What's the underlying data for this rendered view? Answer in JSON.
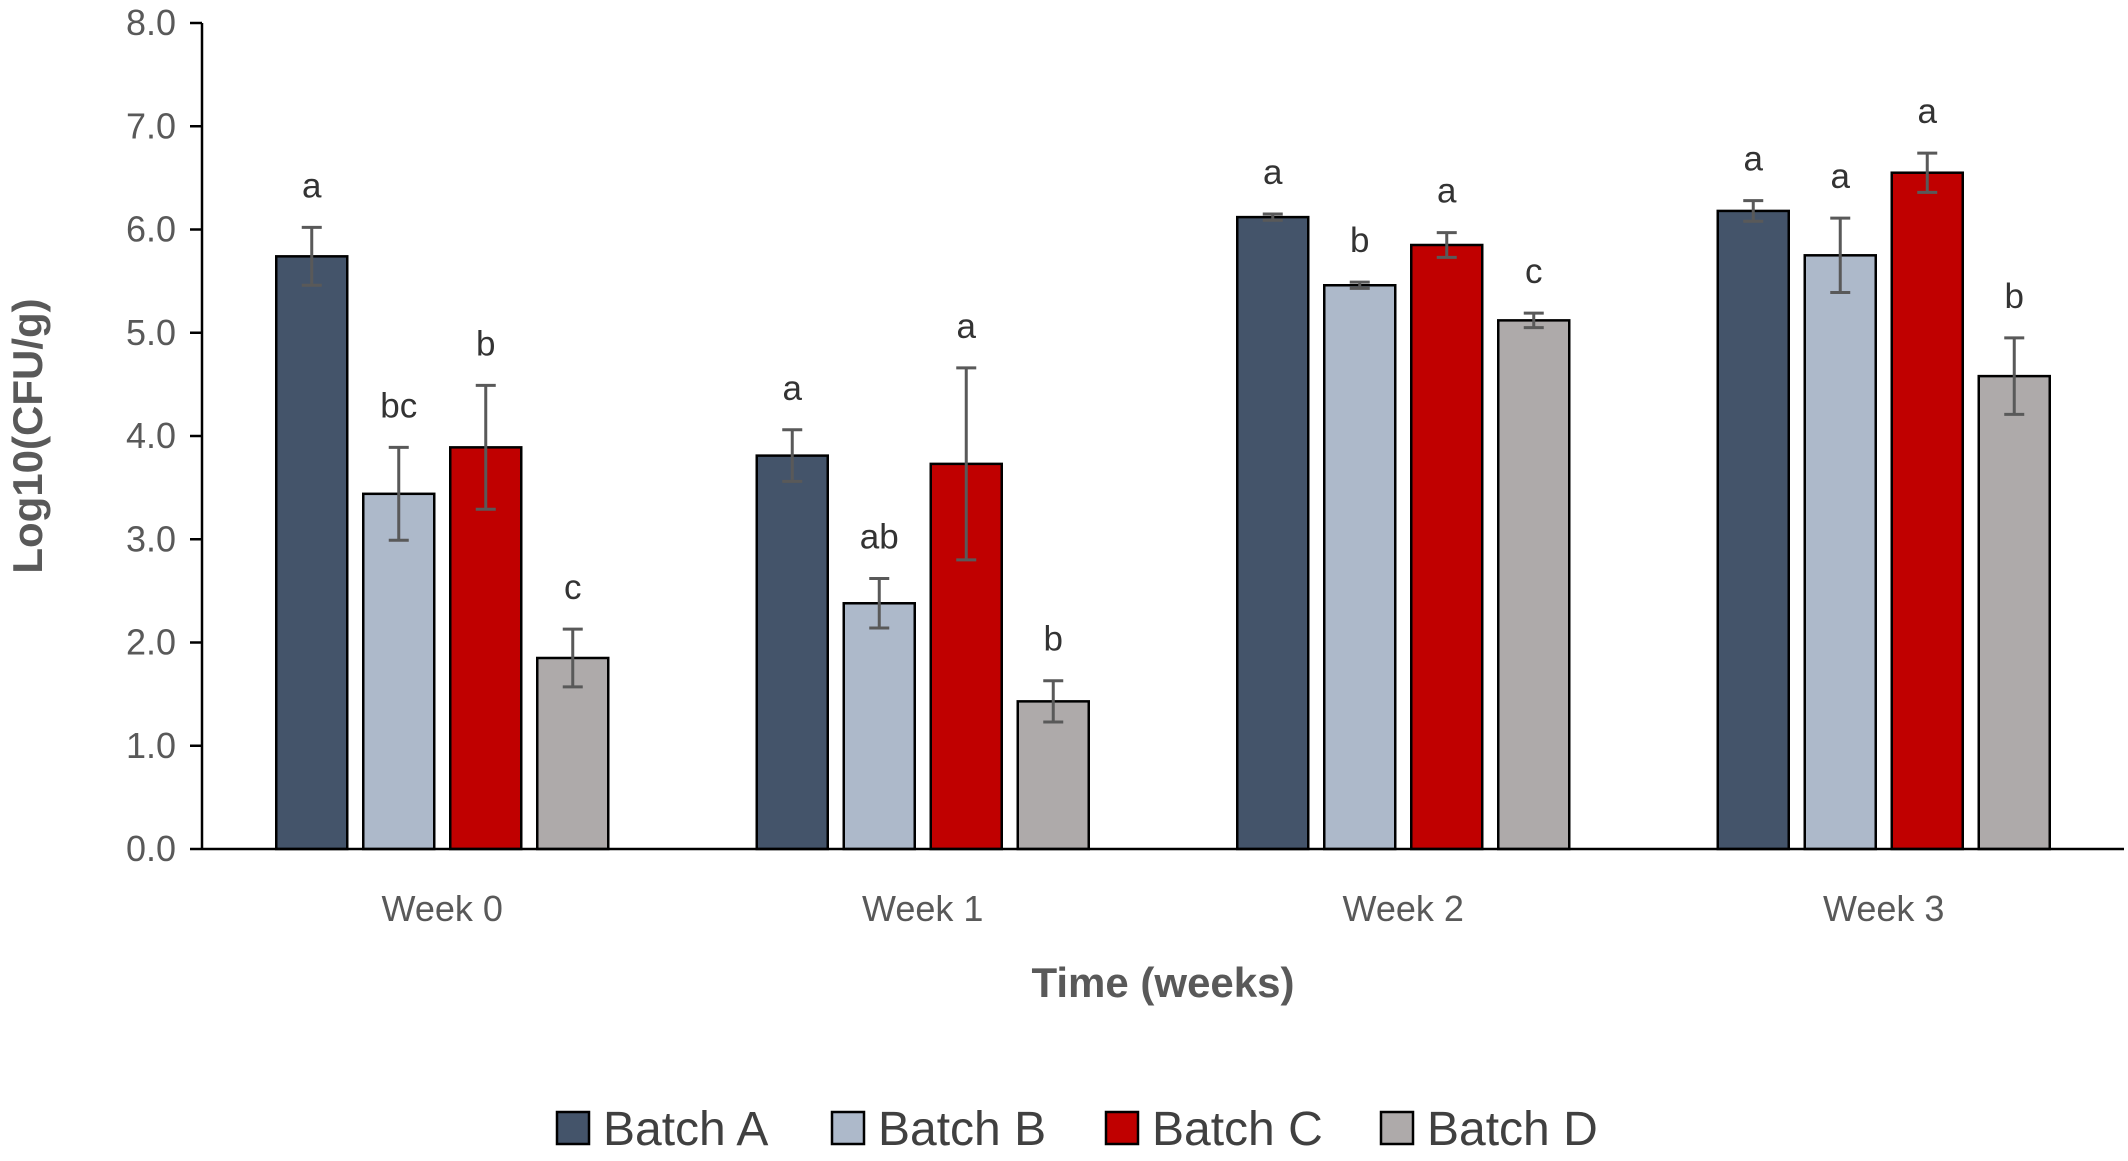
{
  "chart_data": {
    "type": "bar",
    "title": "",
    "xlabel": "Time (weeks)",
    "ylabel": "Log10(CFU/g)",
    "ylim": [
      0,
      8
    ],
    "yticks": [
      "0.0",
      "1.0",
      "2.0",
      "3.0",
      "4.0",
      "5.0",
      "6.0",
      "7.0",
      "8.0"
    ],
    "categories": [
      "Week 0",
      "Week 1",
      "Week 2",
      "Week 3"
    ],
    "grid": false,
    "legend_position": "bottom",
    "series": [
      {
        "name": "Batch A",
        "color": "#44546a",
        "values": [
          5.74,
          3.81,
          6.12,
          6.18
        ],
        "errors": [
          0.28,
          0.25,
          0.03,
          0.1
        ],
        "letters": [
          "a",
          "a",
          "a",
          "a"
        ]
      },
      {
        "name": "Batch B",
        "color": "#adb9ca",
        "values": [
          3.44,
          2.38,
          5.46,
          5.75
        ],
        "errors": [
          0.45,
          0.24,
          0.03,
          0.36
        ],
        "letters": [
          "bc",
          "ab",
          "b",
          "a"
        ]
      },
      {
        "name": "Batch C",
        "color": "#c00000",
        "values": [
          3.89,
          3.73,
          5.85,
          6.55
        ],
        "errors": [
          0.6,
          0.93,
          0.12,
          0.19
        ],
        "letters": [
          "b",
          "a",
          "a",
          "a"
        ]
      },
      {
        "name": "Batch D",
        "color": "#aeaaaa",
        "values": [
          1.85,
          1.43,
          5.12,
          4.58
        ],
        "errors": [
          0.28,
          0.2,
          0.07,
          0.37
        ],
        "letters": [
          "c",
          "b",
          "c",
          "b"
        ]
      }
    ]
  }
}
